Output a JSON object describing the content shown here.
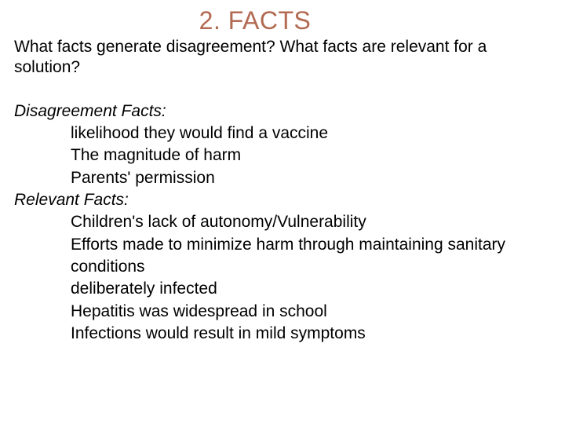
{
  "title": {
    "text": "2. FACTS",
    "color": "#b26a52",
    "fontSize": 32
  },
  "subtitle": {
    "text": "What facts generate disagreement? What facts are relevant for a solution?",
    "fontSize": 21,
    "color": "#000000"
  },
  "sections": [
    {
      "heading": "Disagreement Facts:",
      "items": [
        "likelihood they would find a vaccine",
        "The magnitude of harm",
        "Parents' permission"
      ]
    },
    {
      "heading": "Relevant Facts:",
      "items": [
        "Children's lack of autonomy/Vulnerability",
        "Efforts made to minimize harm through maintaining sanitary conditions",
        "deliberately infected",
        "Hepatitis was widespread in school",
        "Infections would result in mild symptoms"
      ]
    }
  ],
  "style": {
    "background": "#ffffff",
    "bodyFontSize": 21,
    "indentPx": 72
  }
}
